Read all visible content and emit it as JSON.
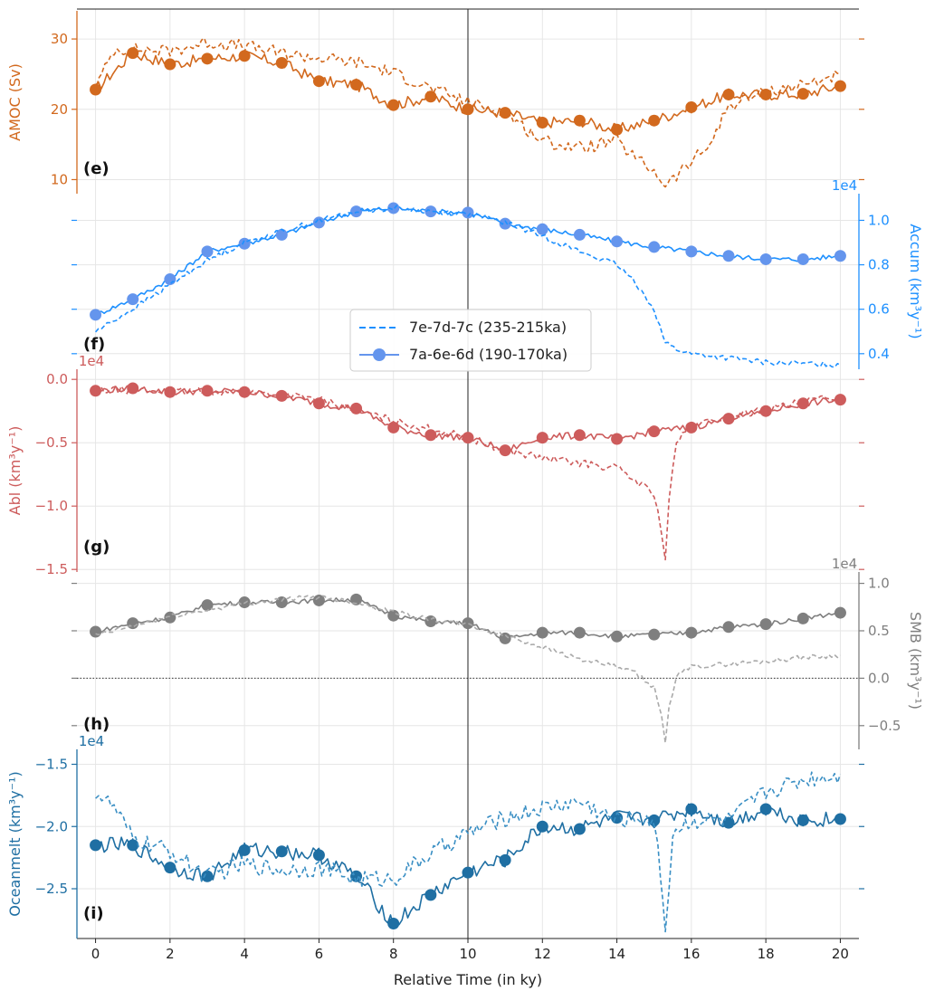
{
  "chart_data": {
    "type": "line",
    "x_range": [
      -0.5,
      20.5
    ],
    "x_ticks": [
      "0",
      "2",
      "4",
      "6",
      "8",
      "10",
      "12",
      "14",
      "16",
      "18",
      "20"
    ],
    "xlabel": "Relative Time (in ky)",
    "grid": true,
    "vline_x": 10,
    "legend": {
      "placement": "center",
      "entries": [
        "7e-7d-7c (235-215ka)",
        "7a-6e-6d (190-170ka)"
      ]
    },
    "panels": [
      {
        "tag": "(e)",
        "ylabel": "AMOC (Sv)",
        "axis_side": "left",
        "color": "#d2691e",
        "ylim": [
          8,
          34
        ],
        "ticks": [
          10,
          20,
          30
        ],
        "tick_labels": [
          "10",
          "20",
          "30"
        ],
        "multiplier": "",
        "series": [
          {
            "style": "solid",
            "markers": true,
            "x": [
              0,
              1,
              2,
              3,
              4,
              5,
              6,
              7,
              8,
              9,
              10,
              11,
              12,
              13,
              14,
              15,
              16,
              17,
              18,
              19,
              20
            ],
            "y": [
              22.8,
              28,
              26.4,
              27.2,
              27.6,
              26.6,
              24,
              23.5,
              20.6,
              21.8,
              20,
              19.5,
              18.1,
              18.4,
              17.1,
              18.4,
              20.3,
              22.1,
              22.1,
              22.2,
              23.3
            ]
          },
          {
            "style": "dashed",
            "markers": false,
            "x": [
              0,
              0.5,
              1,
              2,
              3,
              4,
              5,
              6,
              7,
              8,
              9,
              10,
              11,
              12,
              13,
              14,
              14.5,
              15,
              15.3,
              15.6,
              16,
              16.5,
              17,
              18,
              19,
              20
            ],
            "y": [
              23,
              28.5,
              28.5,
              28.3,
              29.5,
              29,
              28,
              27.3,
              26.7,
              25.2,
              23,
              21,
              19.5,
              15.5,
              14.5,
              15.5,
              13,
              11.2,
              9.3,
              10.5,
              12.5,
              15,
              20.5,
              22.5,
              23.5,
              25
            ]
          }
        ]
      },
      {
        "tag": "(f)",
        "ylabel": "Accum (km³y⁻¹)",
        "axis_side": "right",
        "color": "#1e90ff",
        "marker_color": "#6495ed",
        "ylim": [
          0.33,
          1.12
        ],
        "ticks": [
          0.4,
          0.6,
          0.8,
          1.0
        ],
        "tick_labels": [
          "0.4",
          "0.6",
          "0.8",
          "1.0"
        ],
        "multiplier": "1e4",
        "series": [
          {
            "style": "solid",
            "markers": true,
            "x": [
              0,
              1,
              2,
              3,
              4,
              5,
              6,
              7,
              8,
              9,
              10,
              11,
              12,
              13,
              14,
              15,
              16,
              17,
              18,
              19,
              20
            ],
            "y": [
              0.575,
              0.645,
              0.735,
              0.86,
              0.895,
              0.935,
              0.99,
              1.04,
              1.055,
              1.04,
              1.035,
              0.985,
              0.96,
              0.935,
              0.905,
              0.88,
              0.86,
              0.84,
              0.825,
              0.825,
              0.84
            ]
          },
          {
            "style": "dashed",
            "markers": false,
            "x": [
              0,
              1,
              2,
              3,
              4,
              5,
              6,
              7,
              8,
              9,
              10,
              11,
              12,
              13,
              14,
              14.5,
              15,
              15.3,
              15.6,
              16,
              17,
              18,
              19,
              20
            ],
            "y": [
              0.5,
              0.6,
              0.71,
              0.82,
              0.9,
              0.95,
              1.0,
              1.04,
              1.055,
              1.04,
              1.03,
              0.99,
              0.93,
              0.86,
              0.8,
              0.72,
              0.6,
              0.45,
              0.42,
              0.4,
              0.38,
              0.36,
              0.355,
              0.35
            ]
          }
        ]
      },
      {
        "tag": "(g)",
        "ylabel": "Abl (km³y⁻¹)",
        "axis_side": "left",
        "color": "#cd5c5c",
        "ylim": [
          -1.52,
          0.08
        ],
        "ticks": [
          -1.5,
          -1.0,
          -0.5,
          0.0
        ],
        "tick_labels": [
          "−1.5",
          "−1.0",
          "−0.5",
          "0.0"
        ],
        "multiplier": "1e4",
        "series": [
          {
            "style": "solid",
            "markers": true,
            "x": [
              0,
              1,
              2,
              3,
              4,
              5,
              6,
              7,
              8,
              9,
              10,
              11,
              12,
              13,
              14,
              15,
              16,
              17,
              18,
              19,
              20
            ],
            "y": [
              -0.09,
              -0.07,
              -0.1,
              -0.09,
              -0.1,
              -0.13,
              -0.19,
              -0.23,
              -0.38,
              -0.44,
              -0.46,
              -0.56,
              -0.46,
              -0.44,
              -0.47,
              -0.41,
              -0.38,
              -0.31,
              -0.25,
              -0.19,
              -0.16
            ]
          },
          {
            "style": "dashed",
            "markers": false,
            "x": [
              0,
              1,
              2,
              3,
              4,
              5,
              6,
              7,
              8,
              9,
              10,
              11,
              12,
              13,
              14,
              14.5,
              15,
              15.2,
              15.3,
              15.4,
              15.6,
              16,
              17,
              18,
              19,
              20
            ],
            "y": [
              -0.09,
              -0.08,
              -0.1,
              -0.09,
              -0.1,
              -0.12,
              -0.16,
              -0.24,
              -0.33,
              -0.39,
              -0.46,
              -0.56,
              -0.62,
              -0.66,
              -0.7,
              -0.8,
              -0.9,
              -1.2,
              -1.42,
              -0.95,
              -0.5,
              -0.37,
              -0.3,
              -0.24,
              -0.18,
              -0.13
            ]
          }
        ]
      },
      {
        "tag": "(h)",
        "ylabel": "SMB (km³y⁻¹)",
        "axis_side": "right",
        "color": "#7f7f7f",
        "dashed_color": "#aaaaaa",
        "ylim": [
          -0.75,
          1.12
        ],
        "ticks": [
          -0.5,
          0.0,
          0.5,
          1.0
        ],
        "tick_labels": [
          "−0.5",
          "0.0",
          "0.5",
          "1.0"
        ],
        "multiplier": "1e4",
        "zero_line": true,
        "series": [
          {
            "style": "solid",
            "markers": true,
            "x": [
              0,
              1,
              2,
              3,
              4,
              5,
              6,
              7,
              8,
              9,
              10,
              11,
              12,
              13,
              14,
              15,
              16,
              17,
              18,
              19,
              20
            ],
            "y": [
              0.49,
              0.58,
              0.64,
              0.77,
              0.8,
              0.8,
              0.82,
              0.83,
              0.66,
              0.6,
              0.58,
              0.42,
              0.48,
              0.48,
              0.44,
              0.46,
              0.48,
              0.54,
              0.57,
              0.63,
              0.69
            ]
          },
          {
            "style": "dashed",
            "markers": false,
            "x": [
              0,
              1,
              2,
              3,
              4,
              5,
              6,
              7,
              8,
              9,
              10,
              11,
              12,
              13,
              14,
              14.5,
              15,
              15.2,
              15.3,
              15.4,
              15.6,
              16,
              17,
              18,
              19,
              20
            ],
            "y": [
              0.45,
              0.55,
              0.65,
              0.72,
              0.79,
              0.83,
              0.86,
              0.8,
              0.7,
              0.62,
              0.56,
              0.45,
              0.33,
              0.2,
              0.12,
              0.05,
              -0.1,
              -0.4,
              -0.68,
              -0.3,
              0.02,
              0.12,
              0.15,
              0.18,
              0.22,
              0.24
            ]
          }
        ]
      },
      {
        "tag": "(i)",
        "ylabel": "Oceanmelt (km³y⁻¹)",
        "axis_side": "left",
        "color": "#1f6fa3",
        "dashed_color": "#3a8fc4",
        "ylim": [
          -2.9,
          -1.38
        ],
        "ticks": [
          -2.5,
          -2.0,
          -1.5
        ],
        "tick_labels": [
          "−2.5",
          "−2.0",
          "−1.5"
        ],
        "multiplier": "1e4",
        "series": [
          {
            "style": "solid",
            "markers": true,
            "x": [
              0,
              1,
              2,
              3,
              4,
              5,
              6,
              7,
              8,
              9,
              10,
              11,
              12,
              13,
              14,
              15,
              16,
              17,
              18,
              19,
              20
            ],
            "y": [
              -2.15,
              -2.15,
              -2.33,
              -2.4,
              -2.19,
              -2.2,
              -2.23,
              -2.4,
              -2.78,
              -2.55,
              -2.37,
              -2.27,
              -2.0,
              -2.02,
              -1.93,
              -1.95,
              -1.86,
              -1.97,
              -1.86,
              -1.95,
              -1.94
            ]
          },
          {
            "style": "dashed",
            "markers": false,
            "x": [
              0,
              0.5,
              1,
              2,
              3,
              4,
              5,
              6,
              7,
              8,
              9,
              10,
              11,
              12,
              13,
              14,
              14.8,
              15.1,
              15.3,
              15.5,
              16,
              17,
              18,
              19,
              20
            ],
            "y": [
              -1.72,
              -1.85,
              -2.1,
              -2.2,
              -2.4,
              -2.3,
              -2.35,
              -2.33,
              -2.42,
              -2.42,
              -2.22,
              -2.05,
              -1.93,
              -1.85,
              -1.8,
              -1.95,
              -1.92,
              -2.1,
              -2.85,
              -2.05,
              -1.95,
              -1.95,
              -1.72,
              -1.62,
              -1.58
            ]
          }
        ]
      }
    ]
  }
}
